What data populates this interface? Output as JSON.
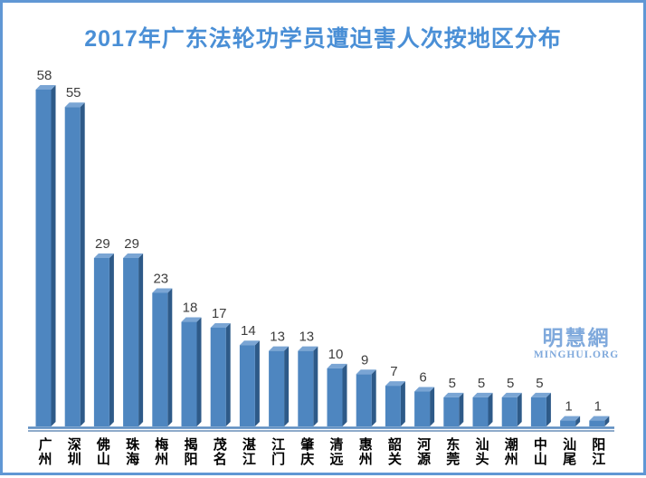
{
  "page": {
    "title": "2017年广东法轮功学员遭迫害人次按地区分布",
    "watermark": {
      "cn": "明慧網",
      "en": "MINGHUI.ORG"
    }
  },
  "colors": {
    "title": "#4a8fd6",
    "frame": "#6097d4",
    "bar_front": "#4e86c0",
    "bar_top": "#7aa5d4",
    "bar_side": "#2e5a88",
    "axis_line_main": "#5b8cc0",
    "axis_line_sub": "#4a78aa",
    "value_label": "#3d3d3d",
    "category_label": "#000000",
    "watermark": "#7fa9dc",
    "background": "#ffffff"
  },
  "chart_data": {
    "type": "bar",
    "title": "2017年广东法轮功学员遭迫害人次按地区分布",
    "categories": [
      "广州",
      "深圳",
      "佛山",
      "珠海",
      "梅州",
      "揭阳",
      "茂名",
      "湛江",
      "江门",
      "肇庆",
      "清远",
      "惠州",
      "韶关",
      "河源",
      "东莞",
      "汕头",
      "潮州",
      "中山",
      "汕尾",
      "阳江"
    ],
    "values": [
      58,
      55,
      29,
      29,
      23,
      18,
      17,
      14,
      13,
      13,
      10,
      9,
      7,
      6,
      5,
      5,
      5,
      5,
      1,
      1
    ],
    "xlabel": "",
    "ylabel": "",
    "ylim": [
      0,
      60
    ],
    "grid": false,
    "legend": null,
    "data_labels": true,
    "bar_style": "3d",
    "category_label_orientation": "vertical-stacked"
  }
}
